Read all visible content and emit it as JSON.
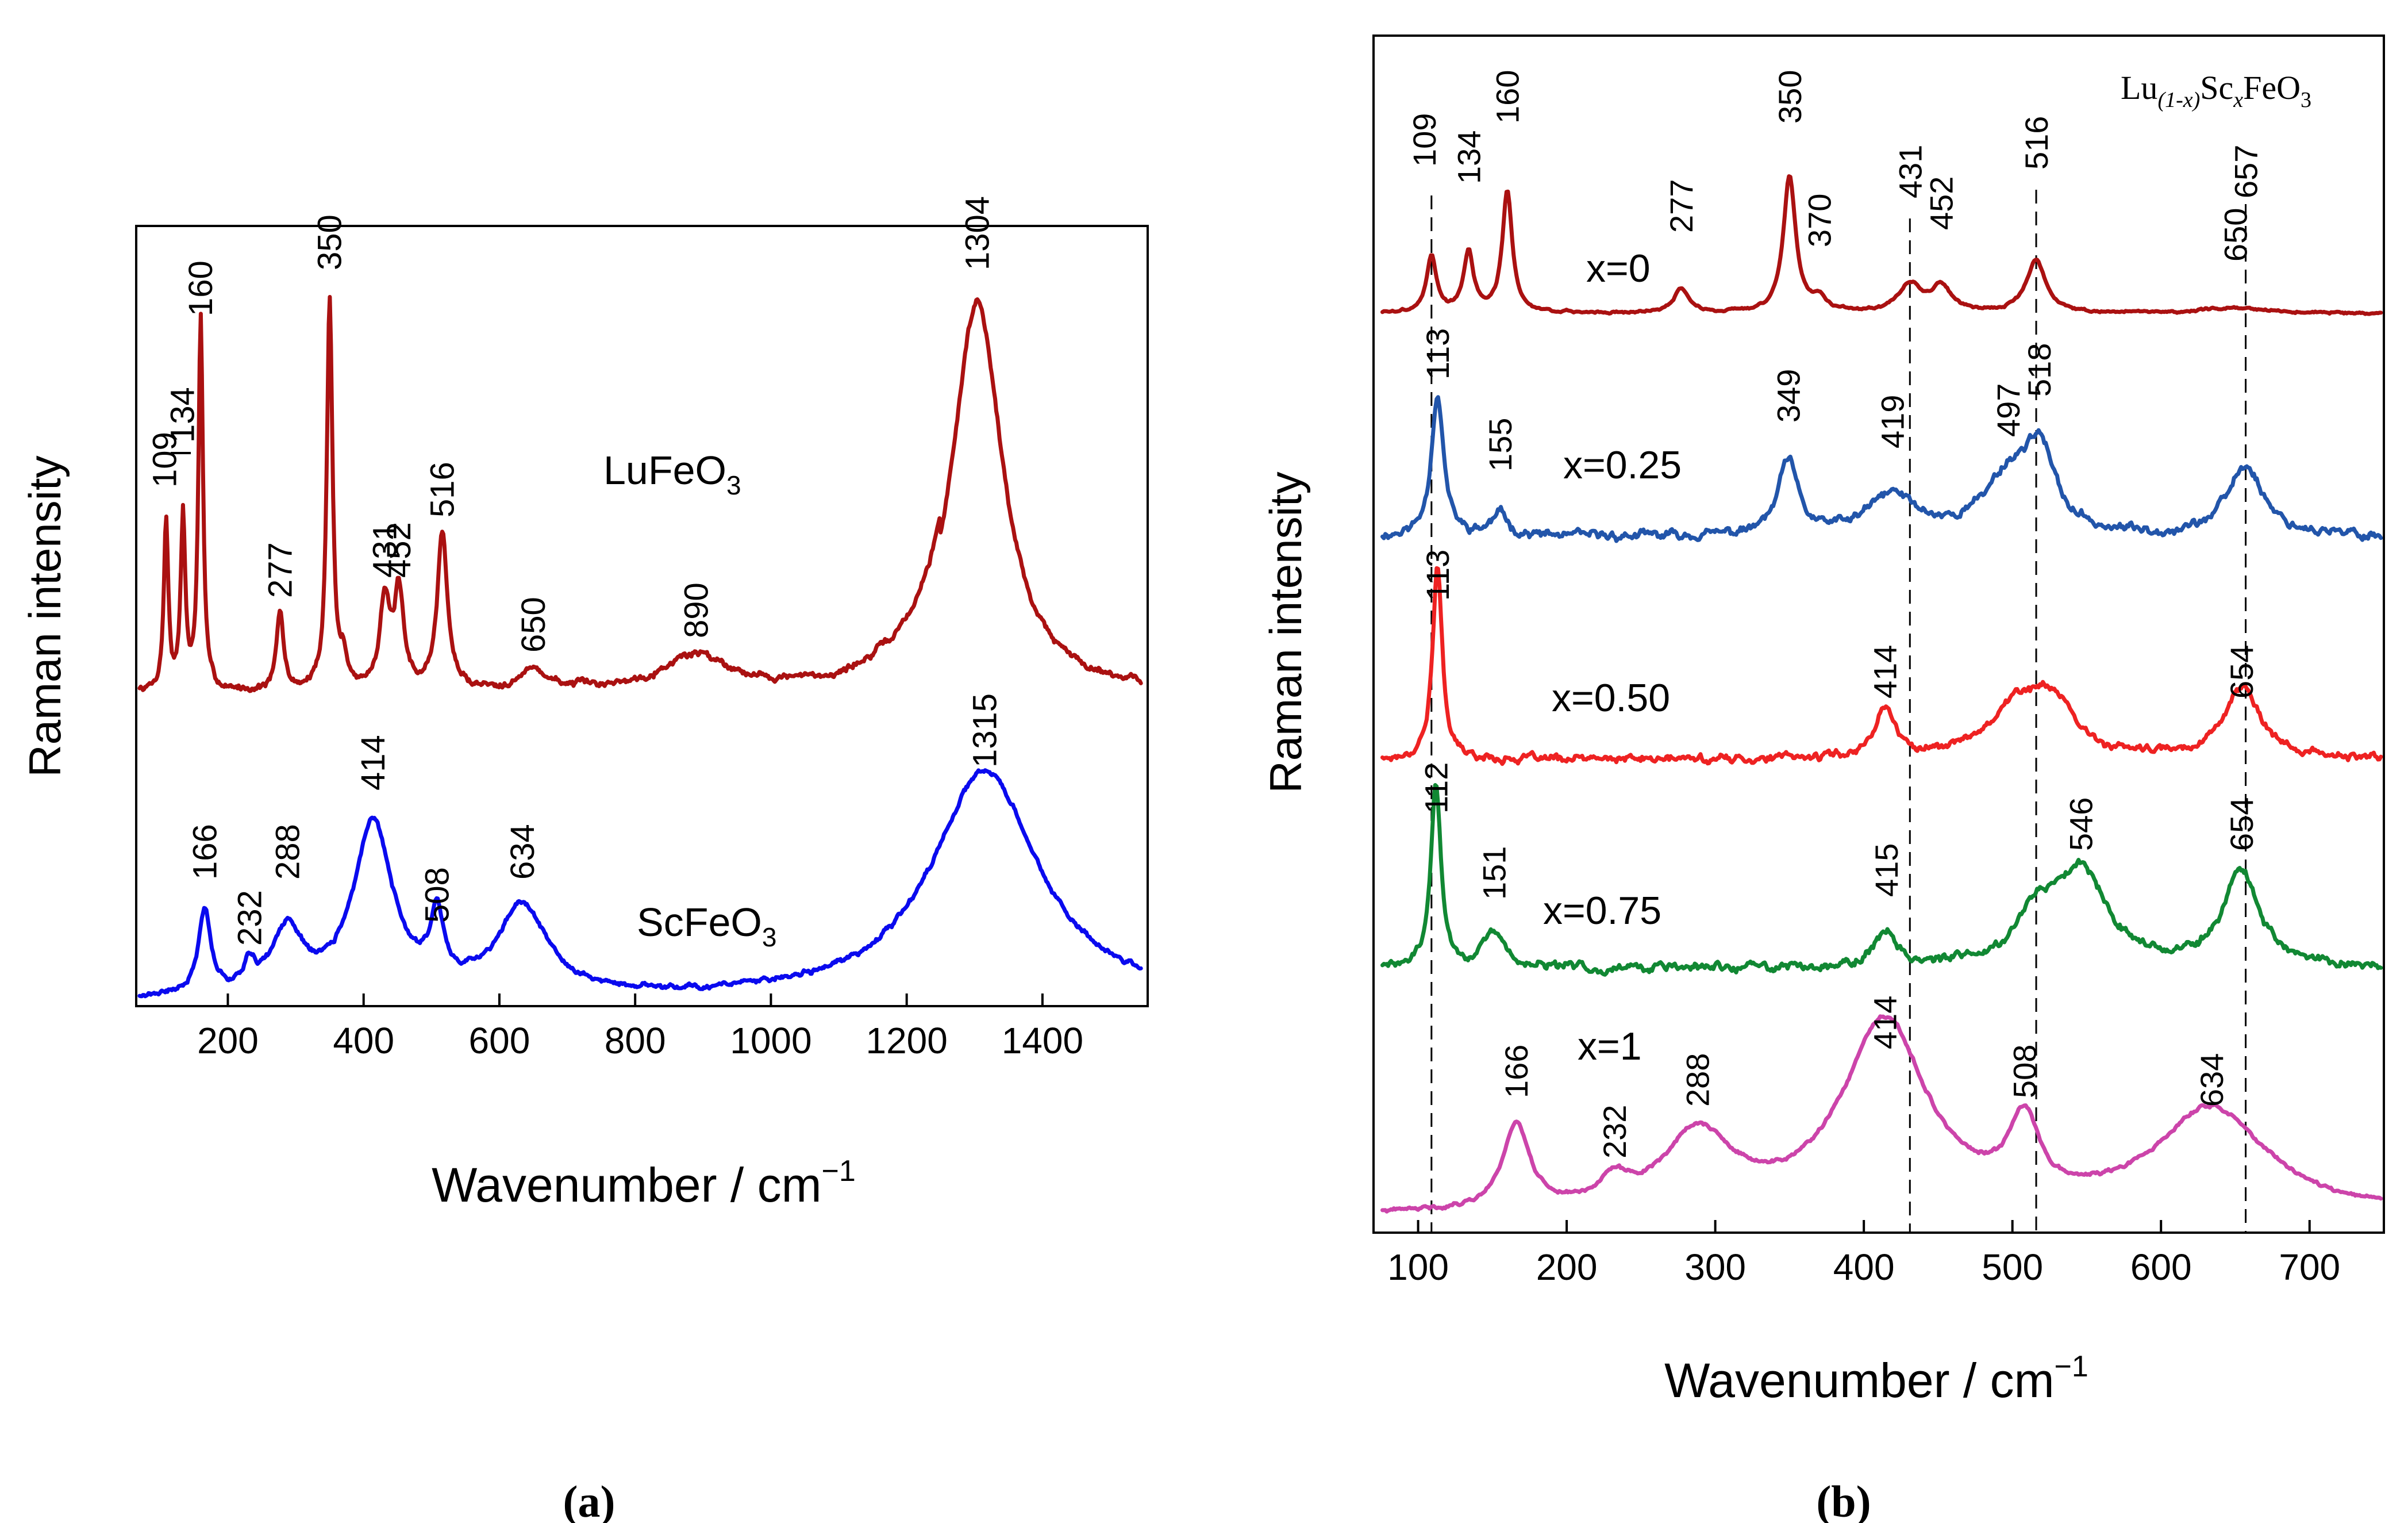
{
  "panel_labels": [
    "(a)",
    "(b)"
  ],
  "chart_data": [
    {
      "type": "line",
      "panel": "a",
      "xlabel": "Wavenumber / cm",
      "xlabel_sup": "−1",
      "ylabel": "Raman intensity",
      "xlim": [
        65,
        1555
      ],
      "xticks": [
        200,
        400,
        600,
        800,
        1000,
        1200,
        1400
      ],
      "y_units": "arbitrary (offset, y axis unlabeled)",
      "series": [
        {
          "name": "LuFeO",
          "name_sub": "3",
          "color": "#aa1111",
          "baseline": 0.26,
          "peaks": [
            {
              "x": 109,
              "h": 0.43,
              "w": 4
            },
            {
              "x": 134,
              "h": 0.44,
              "w": 4
            },
            {
              "x": 160,
              "h": 0.95,
              "w": 4
            },
            {
              "x": 277,
              "h": 0.2,
              "w": 6
            },
            {
              "x": 350,
              "h": 1.0,
              "w": 5
            },
            {
              "x": 370,
              "h": 0.07,
              "w": 6
            },
            {
              "x": 431,
              "h": 0.23,
              "w": 9
            },
            {
              "x": 452,
              "h": 0.24,
              "w": 8
            },
            {
              "x": 516,
              "h": 0.4,
              "w": 9
            },
            {
              "x": 650,
              "h": 0.05,
              "w": 25
            },
            {
              "x": 890,
              "h": 0.09,
              "w": 60
            },
            {
              "x": 1304,
              "h": 1.0,
              "w": 45
            }
          ],
          "peak_labels": [
            "109",
            "134",
            "160",
            "277",
            "350",
            "431",
            "452",
            "516",
            "650",
            "890",
            "1304"
          ]
        },
        {
          "name": "ScFeO",
          "name_sub": "3",
          "color": "#0a0aee",
          "baseline": 0.0,
          "peaks": [
            {
              "x": 166,
              "h": 0.27,
              "w": 11
            },
            {
              "x": 232,
              "h": 0.08,
              "w": 10
            },
            {
              "x": 288,
              "h": 0.2,
              "w": 28
            },
            {
              "x": 414,
              "h": 0.55,
              "w": 35
            },
            {
              "x": 508,
              "h": 0.21,
              "w": 12
            },
            {
              "x": 634,
              "h": 0.28,
              "w": 45
            },
            {
              "x": 1315,
              "h": 0.73,
              "w": 95
            }
          ],
          "peak_labels": [
            "166",
            "232",
            "288",
            "414",
            "508",
            "634",
            "1315"
          ]
        }
      ]
    },
    {
      "type": "line",
      "panel": "b",
      "title_main": "Lu",
      "title_sub1": "(1-x)",
      "title_mid": "Sc",
      "title_sub2": "x",
      "title_tail": "FeO",
      "title_sub3": "3",
      "xlabel": "Wavenumber / cm",
      "xlabel_sup": "−1",
      "ylabel": "Raman intensity",
      "xlim": [
        70,
        750
      ],
      "xticks": [
        100,
        200,
        300,
        400,
        500,
        600,
        700
      ],
      "y_units": "arbitrary (offset, y axis unlabeled)",
      "reference_lines_x": [
        109,
        431,
        516,
        657
      ],
      "series": [
        {
          "name": "x=0",
          "color": "#aa1111",
          "peaks": [
            {
              "x": 109,
              "h": 0.33,
              "w": 4
            },
            {
              "x": 134,
              "h": 0.35,
              "w": 4
            },
            {
              "x": 160,
              "h": 0.7,
              "w": 4
            },
            {
              "x": 277,
              "h": 0.14,
              "w": 6
            },
            {
              "x": 350,
              "h": 0.79,
              "w": 5
            },
            {
              "x": 370,
              "h": 0.08,
              "w": 6
            },
            {
              "x": 431,
              "h": 0.16,
              "w": 9
            },
            {
              "x": 452,
              "h": 0.15,
              "w": 8
            },
            {
              "x": 516,
              "h": 0.3,
              "w": 8
            },
            {
              "x": 650,
              "h": 0.03,
              "w": 25
            }
          ],
          "peak_labels": [
            "109",
            "134",
            "160",
            "277",
            "350",
            "370",
            "431",
            "452",
            "516",
            "650",
            "657"
          ]
        },
        {
          "name": "x=0.25",
          "color": "#2255aa",
          "peaks": [
            {
              "x": 113,
              "h": 0.78,
              "w": 5
            },
            {
              "x": 155,
              "h": 0.12,
              "w": 7
            },
            {
              "x": 349,
              "h": 0.4,
              "w": 8
            },
            {
              "x": 419,
              "h": 0.22,
              "w": 20
            },
            {
              "x": 497,
              "h": 0.3,
              "w": 20
            },
            {
              "x": 518,
              "h": 0.42,
              "w": 12
            },
            {
              "x": 657,
              "h": 0.38,
              "w": 15
            }
          ],
          "peak_labels": [
            "113",
            "155",
            "349",
            "419",
            "497",
            "518"
          ]
        },
        {
          "name": "x=0.50",
          "color": "#ee2222",
          "peaks": [
            {
              "x": 113,
              "h": 0.95,
              "w": 4
            },
            {
              "x": 414,
              "h": 0.25,
              "w": 8
            },
            {
              "x": 505,
              "h": 0.28,
              "w": 25
            },
            {
              "x": 528,
              "h": 0.2,
              "w": 15
            },
            {
              "x": 654,
              "h": 0.35,
              "w": 15
            }
          ],
          "peak_labels": [
            "113",
            "414",
            "654"
          ]
        },
        {
          "name": "x=0.75",
          "color": "#118833",
          "peaks": [
            {
              "x": 112,
              "h": 0.95,
              "w": 4
            },
            {
              "x": 151,
              "h": 0.17,
              "w": 9
            },
            {
              "x": 415,
              "h": 0.18,
              "w": 9
            },
            {
              "x": 515,
              "h": 0.22,
              "w": 15
            },
            {
              "x": 546,
              "h": 0.5,
              "w": 22
            },
            {
              "x": 654,
              "h": 0.5,
              "w": 14
            }
          ],
          "peak_labels": [
            "112",
            "151",
            "415",
            "546",
            "654"
          ]
        },
        {
          "name": "x=1",
          "color": "#cc44aa",
          "peaks": [
            {
              "x": 166,
              "h": 0.45,
              "w": 11
            },
            {
              "x": 232,
              "h": 0.12,
              "w": 12
            },
            {
              "x": 288,
              "h": 0.4,
              "w": 28
            },
            {
              "x": 414,
              "h": 1.0,
              "w": 35
            },
            {
              "x": 508,
              "h": 0.4,
              "w": 12
            },
            {
              "x": 634,
              "h": 0.55,
              "w": 45
            }
          ],
          "peak_labels": [
            "166",
            "232",
            "288",
            "414",
            "508",
            "634"
          ]
        }
      ]
    }
  ]
}
